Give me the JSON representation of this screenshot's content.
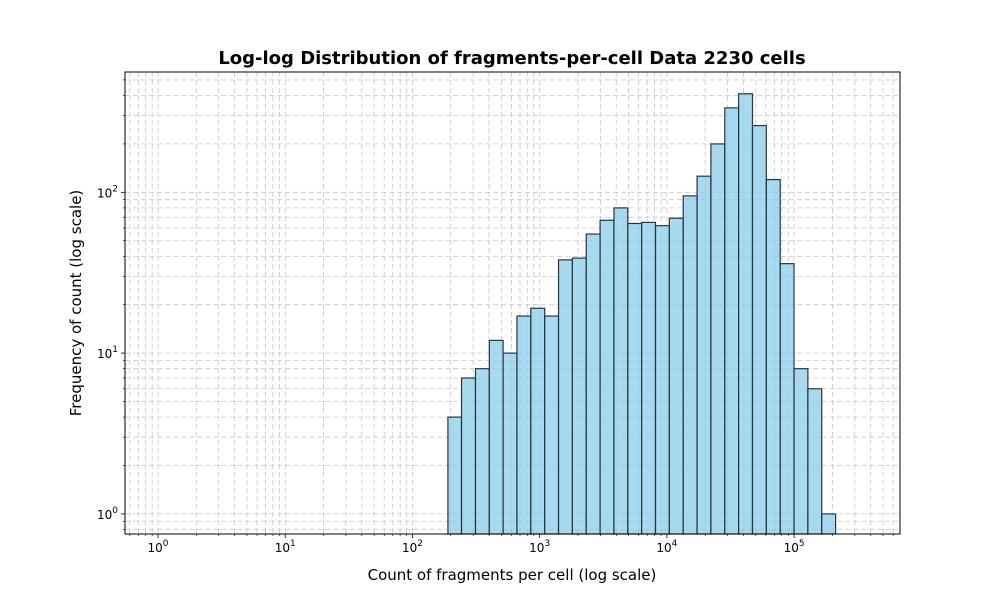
{
  "chart_data": {
    "type": "bar",
    "title": "Log-log Distribution of fragments-per-cell Data 2230 cells",
    "xlabel": "Count of fragments per cell (log scale)",
    "ylabel": "Frequency of count (log scale)",
    "x_scale": "log",
    "y_scale": "log",
    "xlim": [
      0.55,
      680000
    ],
    "ylim": [
      0.75,
      560
    ],
    "x_ticks": [
      {
        "base": "10",
        "exp": "0"
      },
      {
        "base": "10",
        "exp": "1"
      },
      {
        "base": "10",
        "exp": "2"
      },
      {
        "base": "10",
        "exp": "3"
      },
      {
        "base": "10",
        "exp": "4"
      },
      {
        "base": "10",
        "exp": "5"
      }
    ],
    "y_ticks": [
      {
        "base": "10",
        "exp": "0"
      },
      {
        "base": "10",
        "exp": "1"
      },
      {
        "base": "10",
        "exp": "2"
      }
    ],
    "grid": true,
    "bar_color": "#87CEEB",
    "edge_color": "#333333",
    "bins": [
      {
        "left": 190,
        "right": 243,
        "count": 4
      },
      {
        "left": 243,
        "right": 313,
        "count": 7
      },
      {
        "left": 313,
        "right": 402,
        "count": 8
      },
      {
        "left": 402,
        "right": 516,
        "count": 12
      },
      {
        "left": 516,
        "right": 663,
        "count": 10
      },
      {
        "left": 663,
        "right": 852,
        "count": 17
      },
      {
        "left": 852,
        "right": 1095,
        "count": 19
      },
      {
        "left": 1095,
        "right": 1407,
        "count": 17
      },
      {
        "left": 1407,
        "right": 1808,
        "count": 38
      },
      {
        "left": 1808,
        "right": 2323,
        "count": 39
      },
      {
        "left": 2323,
        "right": 2985,
        "count": 55
      },
      {
        "left": 2985,
        "right": 3836,
        "count": 67
      },
      {
        "left": 3836,
        "right": 4929,
        "count": 80
      },
      {
        "left": 4929,
        "right": 6334,
        "count": 64
      },
      {
        "left": 6334,
        "right": 8139,
        "count": 65
      },
      {
        "left": 8139,
        "right": 10458,
        "count": 62
      },
      {
        "left": 10458,
        "right": 13439,
        "count": 69
      },
      {
        "left": 13439,
        "right": 17269,
        "count": 95
      },
      {
        "left": 17269,
        "right": 22190,
        "count": 126
      },
      {
        "left": 22190,
        "right": 28514,
        "count": 200
      },
      {
        "left": 28514,
        "right": 36640,
        "count": 335
      },
      {
        "left": 36640,
        "right": 47082,
        "count": 410
      },
      {
        "left": 47082,
        "right": 60500,
        "count": 260
      },
      {
        "left": 60500,
        "right": 77742,
        "count": 120
      },
      {
        "left": 77742,
        "right": 99898,
        "count": 36
      },
      {
        "left": 99898,
        "right": 128367,
        "count": 8
      },
      {
        "left": 128367,
        "right": 164950,
        "count": 6
      },
      {
        "left": 164950,
        "right": 211960,
        "count": 1
      }
    ]
  }
}
